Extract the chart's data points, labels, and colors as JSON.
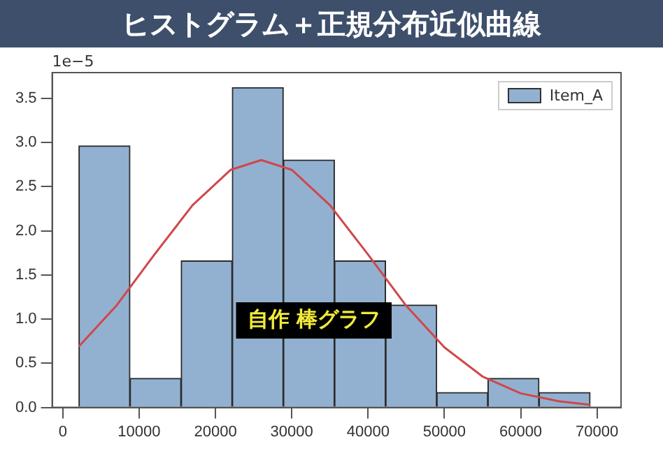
{
  "chart_data": {
    "type": "histogram",
    "title": "ヒストグラム＋正規分布近似曲線",
    "bins": [
      2100,
      8800,
      15500,
      22200,
      28900,
      35600,
      42300,
      49000,
      55700,
      62400,
      69100
    ],
    "series": [
      {
        "name": "Item_A",
        "color": "#92b1d1",
        "values": [
          2.96,
          0.33,
          1.66,
          3.62,
          2.8,
          1.66,
          1.16,
          0.17,
          0.33,
          0.17
        ]
      },
      {
        "type": "line",
        "color": "#d0474a",
        "x": [
          2100,
          7000,
          12000,
          17000,
          22000,
          26000,
          30000,
          35000,
          40000,
          45000,
          50000,
          55000,
          60000,
          65000,
          69100
        ],
        "values": [
          0.69,
          1.15,
          1.73,
          2.29,
          2.69,
          2.8,
          2.69,
          2.29,
          1.73,
          1.15,
          0.68,
          0.35,
          0.16,
          0.07,
          0.03
        ]
      }
    ],
    "xlim": [
      -1400,
      73150
    ],
    "xticks": [
      0,
      10000,
      20000,
      30000,
      40000,
      50000,
      60000,
      70000
    ],
    "ylim": [
      0,
      3.79
    ],
    "yticks": [
      {
        "value": 0,
        "label": "0.0"
      },
      {
        "value": 0.5,
        "label": "0.5"
      },
      {
        "value": 1,
        "label": "1.0"
      },
      {
        "value": 1.5,
        "label": "1.5"
      },
      {
        "value": 2,
        "label": "2.0"
      },
      {
        "value": 2.5,
        "label": "2.5"
      },
      {
        "value": 3,
        "label": "3.0"
      },
      {
        "value": 3.5,
        "label": "3.5"
      }
    ],
    "legend": "top right",
    "grid": false,
    "annotations": [
      "1e−5",
      "自作 棒グラフ"
    ]
  }
}
